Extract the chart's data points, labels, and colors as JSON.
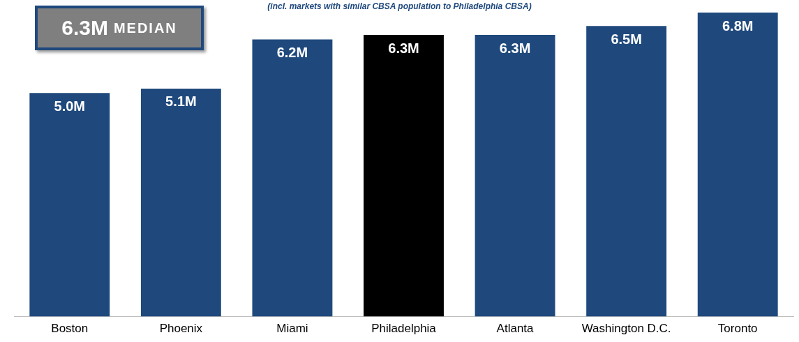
{
  "chart_data": {
    "type": "bar",
    "subtitle": "(incl. markets with similar CBSA population to Philadelphia CBSA)",
    "categories": [
      "Boston",
      "Phoenix",
      "Miami",
      "Philadelphia",
      "Atlanta",
      "Washington D.C.",
      "Toronto"
    ],
    "values": [
      5.0,
      5.1,
      6.2,
      6.3,
      6.3,
      6.5,
      6.8
    ],
    "value_labels": [
      "5.0M",
      "5.1M",
      "6.2M",
      "6.3M",
      "6.3M",
      "6.5M",
      "6.8M"
    ],
    "colors": [
      "#1f497d",
      "#1f497d",
      "#1f497d",
      "#000000",
      "#1f497d",
      "#1f497d",
      "#1f497d"
    ],
    "annotations": [
      "6.3M MEDIAN"
    ],
    "grid": false,
    "legend": false
  }
}
